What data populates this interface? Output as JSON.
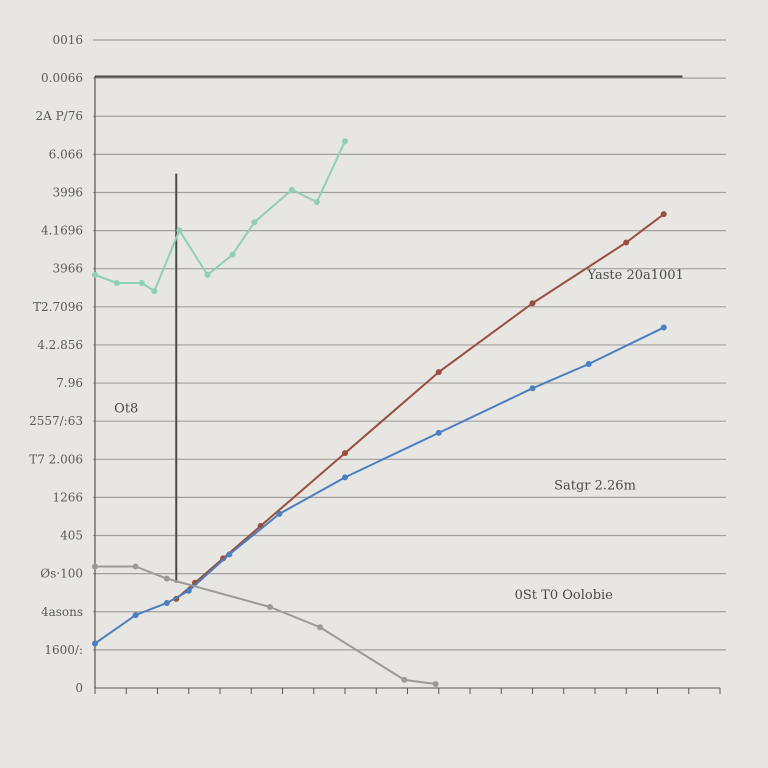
{
  "chart_data": {
    "type": "line",
    "title": "",
    "xlabel": "",
    "ylabel": "",
    "y_tick_labels": [
      "0",
      "1600/:",
      "4asons",
      "Øs·100",
      "405",
      "1266",
      "T7 2.006",
      "2557/:63",
      "7.96",
      "4.2.856",
      "T2.7096",
      "3966",
      "4.1696",
      "3996",
      "6.066",
      "2A P/76",
      "0.0066",
      "0016"
    ],
    "x_tick_labels": [
      "",
      "",
      "",
      "",
      "",
      "",
      "",
      "",
      "",
      "",
      "",
      "",
      "",
      "",
      "",
      "",
      "",
      "",
      "",
      "",
      ""
    ],
    "xlim": [
      0,
      20
    ],
    "ylim": [
      0,
      16
    ],
    "grid": true,
    "legend": "none",
    "colors": {
      "background": "#e8e6e2",
      "grid": "#8a8a8a",
      "axis": "#555555",
      "green_series": "#8ecfb5",
      "red_series": "#9a4e3e",
      "blue_series": "#4a7fc1",
      "gray_series": "#9a9a9a",
      "black_line": "#4a4a4a"
    },
    "series": [
      {
        "color_key": "green_series",
        "x": [
          0,
          0.7,
          1.5,
          1.9,
          2.7,
          3.6,
          4.4,
          5.1,
          6.3,
          7.1,
          8.0
        ],
        "y": [
          10.2,
          10.0,
          10.0,
          9.8,
          11.3,
          10.2,
          10.7,
          11.5,
          12.3,
          12.0,
          13.5
        ]
      },
      {
        "color_key": "red_series",
        "x": [
          2.6,
          3.2,
          4.1,
          5.3,
          8.0,
          11.0,
          14.0,
          17.0,
          18.2
        ],
        "y": [
          2.2,
          2.6,
          3.2,
          4.0,
          5.8,
          7.8,
          9.5,
          11.0,
          11.7
        ]
      },
      {
        "color_key": "blue_series",
        "x": [
          0,
          1.3,
          2.3,
          3.0,
          4.3,
          5.9,
          8.0,
          11.0,
          14.0,
          15.8,
          18.2
        ],
        "y": [
          1.1,
          1.8,
          2.1,
          2.4,
          3.3,
          4.3,
          5.2,
          6.3,
          7.4,
          8.0,
          8.9
        ]
      },
      {
        "color_key": "gray_series",
        "x": [
          0,
          1.3,
          2.3,
          5.6,
          7.2,
          9.9,
          10.9
        ],
        "y": [
          3.0,
          3.0,
          2.7,
          2.0,
          1.5,
          0.2,
          0.1
        ]
      }
    ],
    "extra_lines": [
      {
        "color_key": "black_line",
        "x": [
          0,
          18.8
        ],
        "y": [
          15.1,
          15.1
        ]
      },
      {
        "color_key": "black_line",
        "x": [
          2.6,
          2.6
        ],
        "y": [
          2.6,
          12.7
        ]
      }
    ],
    "annotations": [
      {
        "text": "Yaste 20a1001",
        "x": 17.3,
        "y": 10.2,
        "color_key": "black_line"
      },
      {
        "text": "Satgr 2.26m",
        "x": 16.0,
        "y": 5.0,
        "color_key": "black_line"
      },
      {
        "text": "0St T0 Oolobie",
        "x": 15.0,
        "y": 2.3,
        "color_key": "black_line"
      },
      {
        "text": "Ot8",
        "x": 1.0,
        "y": 6.9,
        "color_key": "black_line"
      }
    ]
  }
}
